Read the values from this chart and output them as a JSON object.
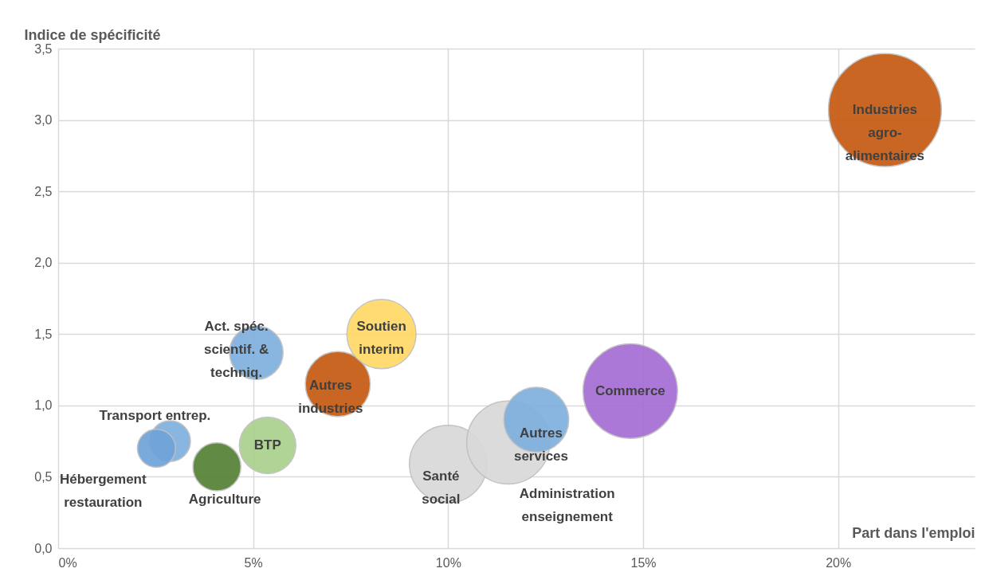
{
  "chart_data": {
    "type": "bubble",
    "xlabel": "Part dans l'emploi",
    "ylabel": "Indice de spécificité",
    "xlim": [
      0,
      23.5
    ],
    "xticks": [
      {
        "value": 0,
        "label": "0%"
      },
      {
        "value": 5,
        "label": "5%"
      },
      {
        "value": 10,
        "label": "10%"
      },
      {
        "value": 15,
        "label": "15%"
      },
      {
        "value": 20,
        "label": "20%"
      }
    ],
    "ylim": [
      0,
      3.5
    ],
    "yticks": [
      {
        "value": 0,
        "label": "0,0"
      },
      {
        "value": 0.5,
        "label": "0,5"
      },
      {
        "value": 1,
        "label": "1,0"
      },
      {
        "value": 1.5,
        "label": "1,5"
      },
      {
        "value": 2,
        "label": "2,0"
      },
      {
        "value": 2.5,
        "label": "2,5"
      },
      {
        "value": 3,
        "label": "3,0"
      },
      {
        "value": 3.5,
        "label": "3,5"
      }
    ],
    "grid": true,
    "series": [
      {
        "name": "Industries\nagro-\nalimentaires",
        "color": "#c55a11",
        "x": [
          21.2
        ],
        "values": [
          3.07
        ],
        "sizes": [
          1
        ]
      },
      {
        "name": "Commerce",
        "color": "#a66dd4",
        "x": [
          14.67
        ],
        "values": [
          1.1
        ],
        "sizes": [
          0.7
        ]
      },
      {
        "name": "Santé\nsocial",
        "color": "#d9d9d9",
        "x": [
          10.0
        ],
        "values": [
          0.59
        ],
        "sizes": [
          0.47
        ]
      },
      {
        "name": "Administration\nenseignement",
        "color": "#d9d9d9",
        "x": [
          11.54
        ],
        "values": [
          0.74
        ],
        "sizes": [
          0.54
        ]
      },
      {
        "name": "Autres\nservices",
        "color": "#7fb0df",
        "x": [
          12.26
        ],
        "values": [
          0.9
        ],
        "sizes": [
          0.33
        ]
      },
      {
        "name": "Autres\nindustries",
        "color": "#c55a11",
        "x": [
          7.17
        ],
        "values": [
          1.15
        ],
        "sizes": [
          0.33
        ]
      },
      {
        "name": "Soutien\ninterim",
        "color": "#ffd966",
        "x": [
          8.29
        ],
        "values": [
          1.5
        ],
        "sizes": [
          0.375
        ]
      },
      {
        "name": "Act. spéc.\nscientif. &\ntechniq.",
        "color": "#80b0df",
        "x": [
          5.08
        ],
        "values": [
          1.37
        ],
        "sizes": [
          0.225
        ]
      },
      {
        "name": "Agriculture",
        "color": "#548235",
        "x": [
          4.07
        ],
        "values": [
          0.57
        ],
        "sizes": [
          0.18
        ]
      },
      {
        "name": "BTP",
        "color": "#a9d18e",
        "x": [
          5.37
        ],
        "values": [
          0.72
        ],
        "sizes": [
          0.25
        ]
      },
      {
        "name": "Transport entrep.",
        "color": "#80b0df",
        "x": [
          2.87
        ],
        "values": [
          0.75
        ],
        "sizes": [
          0.13
        ]
      },
      {
        "name": "Hébergement\nrestauration",
        "color": "#6fa3d9",
        "x": [
          2.52
        ],
        "values": [
          0.7
        ],
        "sizes": [
          0.114
        ]
      }
    ]
  }
}
